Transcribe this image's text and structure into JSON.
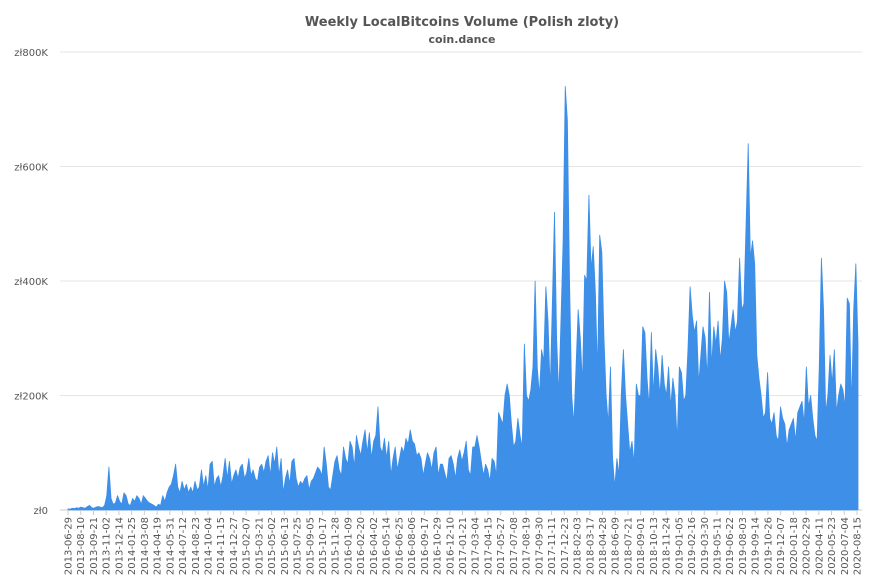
{
  "chart_data": {
    "type": "area",
    "title": "Weekly LocalBitcoins Volume (Polish zloty)",
    "subtitle": "coin.dance",
    "xlabel": "",
    "ylabel": "",
    "ylim": [
      0,
      800000
    ],
    "yticks": [
      0,
      200000,
      400000,
      600000,
      800000
    ],
    "ytick_labels": [
      "zł0",
      "zł200K",
      "zł400K",
      "zł600K",
      "zł800K"
    ],
    "grid": true,
    "legend": "none",
    "color": "#3d8fe8",
    "x_tick_labels": [
      "2013-06-29",
      "2013-08-10",
      "2013-09-21",
      "2013-11-02",
      "2013-12-14",
      "2014-01-25",
      "2014-03-08",
      "2014-04-19",
      "2014-05-31",
      "2014-07-12",
      "2014-08-23",
      "2014-10-04",
      "2014-11-15",
      "2014-12-27",
      "2015-02-07",
      "2015-03-21",
      "2015-05-02",
      "2015-06-13",
      "2015-07-25",
      "2015-09-05",
      "2015-10-17",
      "2015-11-28",
      "2016-01-09",
      "2016-02-20",
      "2016-04-02",
      "2016-05-14",
      "2016-06-25",
      "2016-08-06",
      "2016-09-17",
      "2016-10-29",
      "2016-12-10",
      "2017-01-21",
      "2017-03-04",
      "2017-04-15",
      "2017-05-27",
      "2017-07-08",
      "2017-08-19",
      "2017-09-30",
      "2017-11-11",
      "2017-12-23",
      "2018-02-03",
      "2018-03-17",
      "2018-04-28",
      "2018-06-09",
      "2018-07-21",
      "2018-09-01",
      "2018-10-13",
      "2018-11-24",
      "2019-01-05",
      "2019-02-16",
      "2019-03-30",
      "2019-05-11",
      "2019-06-22",
      "2019-08-03",
      "2019-09-14",
      "2019-10-26",
      "2019-12-07",
      "2020-01-18",
      "2020-02-29",
      "2020-04-11",
      "2020-05-23",
      "2020-07-04",
      "2020-08-15"
    ],
    "values": [
      2000,
      1500,
      3000,
      2500,
      4000,
      3000,
      5000,
      4000,
      3000,
      6000,
      8000,
      4000,
      3000,
      5000,
      6000,
      5000,
      4000,
      8000,
      25000,
      75000,
      20000,
      10000,
      12000,
      25000,
      15000,
      10000,
      30000,
      25000,
      10000,
      8000,
      20000,
      15000,
      25000,
      20000,
      10000,
      25000,
      20000,
      15000,
      12000,
      10000,
      8000,
      5000,
      10000,
      8000,
      25000,
      15000,
      30000,
      40000,
      45000,
      60000,
      80000,
      40000,
      30000,
      50000,
      35000,
      45000,
      30000,
      40000,
      30000,
      50000,
      35000,
      40000,
      70000,
      40000,
      60000,
      35000,
      80000,
      85000,
      40000,
      55000,
      60000,
      40000,
      60000,
      90000,
      55000,
      85000,
      45000,
      60000,
      70000,
      55000,
      75000,
      80000,
      55000,
      65000,
      90000,
      60000,
      70000,
      55000,
      50000,
      75000,
      80000,
      65000,
      85000,
      95000,
      60000,
      100000,
      80000,
      110000,
      60000,
      90000,
      30000,
      55000,
      70000,
      45000,
      85000,
      90000,
      55000,
      40000,
      50000,
      45000,
      55000,
      60000,
      35000,
      50000,
      55000,
      65000,
      75000,
      70000,
      60000,
      110000,
      80000,
      40000,
      35000,
      60000,
      85000,
      95000,
      70000,
      60000,
      110000,
      90000,
      80000,
      120000,
      110000,
      75000,
      130000,
      110000,
      95000,
      120000,
      140000,
      100000,
      135000,
      90000,
      120000,
      130000,
      180000,
      110000,
      100000,
      125000,
      90000,
      120000,
      60000,
      90000,
      110000,
      70000,
      90000,
      110000,
      100000,
      125000,
      115000,
      140000,
      120000,
      115000,
      95000,
      100000,
      90000,
      60000,
      80000,
      100000,
      90000,
      70000,
      100000,
      110000,
      60000,
      80000,
      80000,
      65000,
      50000,
      90000,
      95000,
      80000,
      55000,
      90000,
      105000,
      85000,
      100000,
      120000,
      70000,
      60000,
      110000,
      110000,
      130000,
      110000,
      85000,
      60000,
      80000,
      70000,
      50000,
      90000,
      85000,
      60000,
      170000,
      160000,
      150000,
      200000,
      220000,
      200000,
      150000,
      110000,
      120000,
      160000,
      130000,
      110000,
      290000,
      200000,
      190000,
      210000,
      250000,
      400000,
      250000,
      200000,
      280000,
      260000,
      390000,
      330000,
      210000,
      360000,
      520000,
      300000,
      200000,
      330000,
      470000,
      740000,
      680000,
      400000,
      200000,
      150000,
      250000,
      350000,
      300000,
      220000,
      410000,
      400000,
      550000,
      420000,
      460000,
      380000,
      240000,
      480000,
      450000,
      300000,
      200000,
      150000,
      250000,
      90000,
      40000,
      90000,
      60000,
      200000,
      280000,
      200000,
      150000,
      100000,
      120000,
      80000,
      220000,
      200000,
      200000,
      320000,
      310000,
      230000,
      180000,
      310000,
      200000,
      280000,
      250000,
      200000,
      270000,
      220000,
      200000,
      250000,
      180000,
      230000,
      200000,
      120000,
      250000,
      240000,
      190000,
      200000,
      280000,
      390000,
      340000,
      310000,
      330000,
      220000,
      270000,
      320000,
      300000,
      230000,
      380000,
      250000,
      320000,
      290000,
      330000,
      260000,
      300000,
      400000,
      380000,
      290000,
      320000,
      350000,
      310000,
      330000,
      440000,
      350000,
      360000,
      500000,
      640000,
      440000,
      470000,
      430000,
      270000,
      230000,
      200000,
      160000,
      170000,
      240000,
      160000,
      150000,
      170000,
      130000,
      120000,
      180000,
      160000,
      150000,
      110000,
      140000,
      150000,
      160000,
      120000,
      170000,
      180000,
      190000,
      150000,
      250000,
      180000,
      200000,
      160000,
      130000,
      120000,
      250000,
      440000,
      350000,
      170000,
      200000,
      270000,
      220000,
      280000,
      170000,
      200000,
      220000,
      210000,
      180000,
      370000,
      360000,
      180000,
      350000,
      430000,
      290000
    ]
  }
}
